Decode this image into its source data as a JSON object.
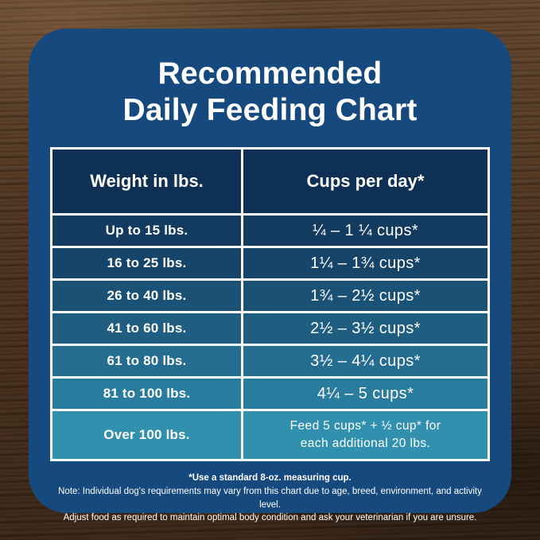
{
  "title": {
    "line1": "Recommended",
    "line2": "Daily Feeding Chart"
  },
  "table": {
    "headers": {
      "weight": "Weight in lbs.",
      "cups": "Cups per day*"
    },
    "rows": [
      {
        "weight": "Up to 15 lbs.",
        "cups": "¼ – 1 ¼ cups*"
      },
      {
        "weight": "16 to 25 lbs.",
        "cups": "1¼ – 1¾  cups*"
      },
      {
        "weight": "26 to 40 lbs.",
        "cups": "1¾ – 2½ cups*"
      },
      {
        "weight": "41 to 60 lbs.",
        "cups": "2½ – 3½ cups*"
      },
      {
        "weight": "61 to 80 lbs.",
        "cups": "3½ – 4¼ cups*"
      },
      {
        "weight": "81 to 100 lbs.",
        "cups": "4¼ – 5 cups*"
      },
      {
        "weight": "Over 100 lbs.",
        "cups": "Feed 5 cups* + ½ cup* for\neach additional 20 lbs."
      }
    ],
    "row_colors": [
      "#133a5f",
      "#174569",
      "#1b5174",
      "#1f5e81",
      "#246d90",
      "#2a7c9e",
      "#3190ae"
    ]
  },
  "footnotes": {
    "line1": "*Use a standard 8-oz. measuring cup.",
    "line2": "Note: Individual dog's requirements may vary from this chart due to age, breed, environment, and activity level.",
    "line3": "Adjust food as required to maintain optimal body condition and ask your veterinarian if you are unsure."
  },
  "colors": {
    "card_background": "#164a7e",
    "header_background": "#0d3054",
    "table_border": "#ffffff",
    "text": "#ffffff"
  },
  "chart_data": {
    "type": "table",
    "title": "Recommended Daily Feeding Chart",
    "columns": [
      "Weight in lbs.",
      "Cups per day*"
    ],
    "rows": [
      [
        "Up to 15 lbs.",
        "¼ – 1 ¼ cups*"
      ],
      [
        "16 to 25 lbs.",
        "1¼ – 1¾ cups*"
      ],
      [
        "26 to 40 lbs.",
        "1¾ – 2½ cups*"
      ],
      [
        "41 to 60 lbs.",
        "2½ – 3½ cups*"
      ],
      [
        "61 to 80 lbs.",
        "3½ – 4¼ cups*"
      ],
      [
        "81 to 100 lbs.",
        "4¼ – 5 cups*"
      ],
      [
        "Over 100 lbs.",
        "Feed 5 cups* + ½ cup* for each additional 20 lbs."
      ]
    ],
    "footnote": "*Use a standard 8-oz. measuring cup.",
    "notes": "Note: Individual dog's requirements may vary from this chart due to age, breed, environment, and activity level. Adjust food as required to maintain optimal body condition and ask your veterinarian if you are unsure."
  }
}
